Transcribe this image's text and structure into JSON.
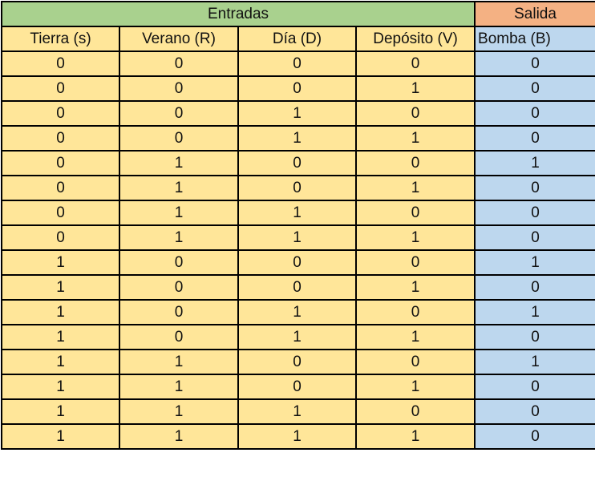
{
  "groups": {
    "inputs": "Entradas",
    "output": "Salida"
  },
  "columns": [
    "Tierra (s)",
    "Verano (R)",
    "Día (D)",
    "Depósito (V)",
    "Bomba (B)"
  ],
  "rows": [
    [
      "0",
      "0",
      "0",
      "0",
      "0"
    ],
    [
      "0",
      "0",
      "0",
      "1",
      "0"
    ],
    [
      "0",
      "0",
      "1",
      "0",
      "0"
    ],
    [
      "0",
      "0",
      "1",
      "1",
      "0"
    ],
    [
      "0",
      "1",
      "0",
      "0",
      "1"
    ],
    [
      "0",
      "1",
      "0",
      "1",
      "0"
    ],
    [
      "0",
      "1",
      "1",
      "0",
      "0"
    ],
    [
      "0",
      "1",
      "1",
      "1",
      "0"
    ],
    [
      "1",
      "0",
      "0",
      "0",
      "1"
    ],
    [
      "1",
      "0",
      "0",
      "1",
      "0"
    ],
    [
      "1",
      "0",
      "1",
      "0",
      "1"
    ],
    [
      "1",
      "0",
      "1",
      "1",
      "0"
    ],
    [
      "1",
      "1",
      "0",
      "0",
      "1"
    ],
    [
      "1",
      "1",
      "0",
      "1",
      "0"
    ],
    [
      "1",
      "1",
      "1",
      "0",
      "0"
    ],
    [
      "1",
      "1",
      "1",
      "1",
      "0"
    ]
  ],
  "colors": {
    "inputs_header": "#a9d18e",
    "output_header": "#f4b183",
    "inputs_cells": "#ffe699",
    "output_cells": "#bdd7ee"
  }
}
